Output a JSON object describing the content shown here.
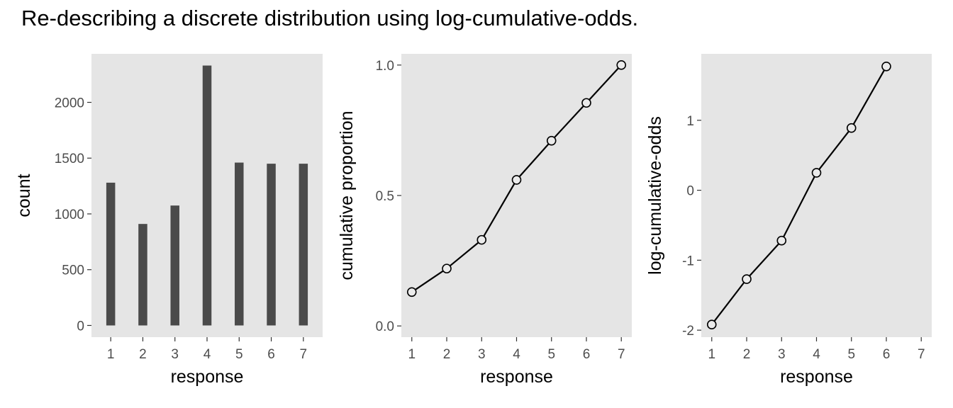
{
  "title": "Re-describing a discrete distribution using log-cumulative-odds.",
  "colors": {
    "panel_background": "#e5e5e5",
    "bar_fill": "#4a4a4a",
    "line": "#000000",
    "point_fill": "#ebebeb",
    "tick_text": "#4d4d4d"
  },
  "chart_data": [
    {
      "type": "bar",
      "xlabel": "response",
      "ylabel": "count",
      "categories": [
        1,
        2,
        3,
        4,
        5,
        6,
        7
      ],
      "values": [
        1280,
        910,
        1075,
        2330,
        1460,
        1450,
        1450
      ],
      "xticks": [
        "1",
        "2",
        "3",
        "4",
        "5",
        "6",
        "7"
      ],
      "yticks": [
        0,
        500,
        1000,
        1500,
        2000
      ],
      "yticks_text": [
        "0",
        "500",
        "1000",
        "1500",
        "2000"
      ],
      "ylim": [
        -105,
        2435
      ],
      "xlim": [
        0.4,
        7.6
      ],
      "grid": false
    },
    {
      "type": "line",
      "xlabel": "response",
      "ylabel": "cumulative proportion",
      "x": [
        1,
        2,
        3,
        4,
        5,
        6,
        7
      ],
      "y": [
        0.13,
        0.22,
        0.33,
        0.56,
        0.71,
        0.855,
        1.0
      ],
      "markers": true,
      "xticks": [
        "1",
        "2",
        "3",
        "4",
        "5",
        "6",
        "7"
      ],
      "yticks": [
        0,
        0.5,
        1
      ],
      "yticks_text": [
        "0.0",
        "0.5",
        "1.0"
      ],
      "ylim": [
        -0.043,
        1.043
      ],
      "xlim": [
        0.7,
        7.3
      ],
      "grid": false
    },
    {
      "type": "line",
      "xlabel": "response",
      "ylabel": "log-cumulative-odds",
      "x": [
        1,
        2,
        3,
        4,
        5,
        6
      ],
      "y": [
        -1.92,
        -1.27,
        -0.72,
        0.25,
        0.89,
        1.77
      ],
      "markers": true,
      "xticks": [
        "1",
        "2",
        "3",
        "4",
        "5",
        "6",
        "7"
      ],
      "yticks": [
        -2,
        -1,
        0,
        1
      ],
      "yticks_text": [
        "-2",
        "-1",
        "0",
        "1"
      ],
      "ylim": [
        -2.1,
        1.95
      ],
      "xlim": [
        0.7,
        7.3
      ],
      "grid": false
    }
  ]
}
